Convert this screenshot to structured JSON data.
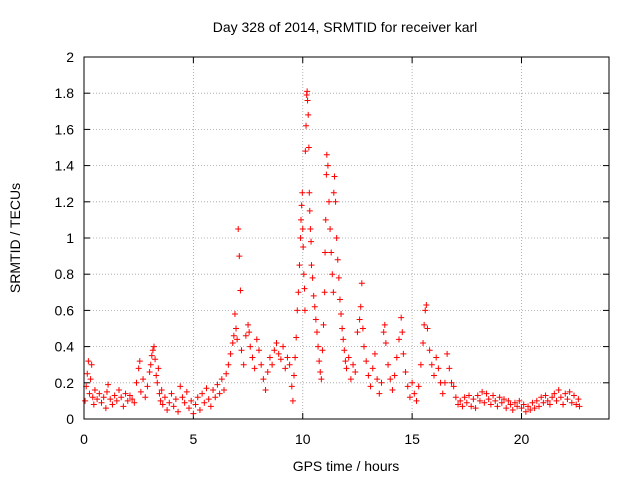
{
  "chart_data": {
    "type": "scatter",
    "title": "Day 328 of 2014, SRMTID for receiver karl",
    "xlabel": "GPS time / hours",
    "ylabel": "SRMTID / TECUs",
    "xlim": [
      0,
      24
    ],
    "ylim": [
      0,
      2
    ],
    "xticks": [
      0,
      5,
      10,
      15,
      20
    ],
    "yticks": [
      0,
      0.2,
      0.4,
      0.6,
      0.8,
      1,
      1.2,
      1.4,
      1.6,
      1.8,
      2
    ],
    "xtick_labels": [
      "0",
      "5",
      "10",
      "15",
      "20"
    ],
    "ytick_labels": [
      "0",
      "0.2",
      "0.4",
      "0.6",
      "0.8",
      "1",
      "1.2",
      "1.4",
      "1.6",
      "1.8",
      "2"
    ],
    "grid": true,
    "marker": "+",
    "color": "#ff0000",
    "series": [
      {
        "name": "SRMTID",
        "points": [
          [
            0.05,
            0.1
          ],
          [
            0.1,
            0.18
          ],
          [
            0.15,
            0.25
          ],
          [
            0.2,
            0.32
          ],
          [
            0.25,
            0.14
          ],
          [
            0.3,
            0.22
          ],
          [
            0.35,
            0.3
          ],
          [
            0.4,
            0.12
          ],
          [
            0.45,
            0.08
          ],
          [
            0.5,
            0.16
          ],
          [
            0.6,
            0.11
          ],
          [
            0.7,
            0.14
          ],
          [
            0.8,
            0.09
          ],
          [
            0.9,
            0.12
          ],
          [
            1.0,
            0.06
          ],
          [
            1.05,
            0.15
          ],
          [
            1.1,
            0.19
          ],
          [
            1.2,
            0.11
          ],
          [
            1.3,
            0.08
          ],
          [
            1.4,
            0.13
          ],
          [
            1.5,
            0.1
          ],
          [
            1.6,
            0.16
          ],
          [
            1.7,
            0.12
          ],
          [
            1.8,
            0.07
          ],
          [
            1.9,
            0.14
          ],
          [
            2.0,
            0.1
          ],
          [
            2.1,
            0.13
          ],
          [
            2.2,
            0.11
          ],
          [
            2.3,
            0.09
          ],
          [
            2.4,
            0.2
          ],
          [
            2.5,
            0.28
          ],
          [
            2.55,
            0.32
          ],
          [
            2.6,
            0.15
          ],
          [
            2.7,
            0.22
          ],
          [
            2.8,
            0.12
          ],
          [
            2.9,
            0.18
          ],
          [
            3.0,
            0.26
          ],
          [
            3.05,
            0.3
          ],
          [
            3.1,
            0.35
          ],
          [
            3.15,
            0.38
          ],
          [
            3.2,
            0.4
          ],
          [
            3.25,
            0.33
          ],
          [
            3.3,
            0.24
          ],
          [
            3.35,
            0.2
          ],
          [
            3.4,
            0.28
          ],
          [
            3.45,
            0.14
          ],
          [
            3.5,
            0.1
          ],
          [
            3.55,
            0.16
          ],
          [
            3.6,
            0.08
          ],
          [
            3.7,
            0.12
          ],
          [
            3.8,
            0.05
          ],
          [
            3.9,
            0.09
          ],
          [
            4.0,
            0.14
          ],
          [
            4.1,
            0.07
          ],
          [
            4.2,
            0.11
          ],
          [
            4.3,
            0.04
          ],
          [
            4.4,
            0.18
          ],
          [
            4.5,
            0.12
          ],
          [
            4.6,
            0.09
          ],
          [
            4.7,
            0.15
          ],
          [
            4.8,
            0.06
          ],
          [
            4.9,
            0.1
          ],
          [
            5.0,
            0.03
          ],
          [
            5.1,
            0.08
          ],
          [
            5.2,
            0.12
          ],
          [
            5.3,
            0.05
          ],
          [
            5.4,
            0.14
          ],
          [
            5.5,
            0.09
          ],
          [
            5.6,
            0.17
          ],
          [
            5.7,
            0.11
          ],
          [
            5.8,
            0.07
          ],
          [
            5.9,
            0.16
          ],
          [
            6.0,
            0.12
          ],
          [
            6.1,
            0.19
          ],
          [
            6.2,
            0.14
          ],
          [
            6.3,
            0.22
          ],
          [
            6.4,
            0.16
          ],
          [
            6.5,
            0.25
          ],
          [
            6.6,
            0.3
          ],
          [
            6.7,
            0.36
          ],
          [
            6.8,
            0.42
          ],
          [
            6.85,
            0.46
          ],
          [
            6.9,
            0.58
          ],
          [
            6.95,
            0.5
          ],
          [
            7.0,
            0.44
          ],
          [
            7.05,
            1.05
          ],
          [
            7.1,
            0.9
          ],
          [
            7.15,
            0.71
          ],
          [
            7.2,
            0.38
          ],
          [
            7.3,
            0.3
          ],
          [
            7.4,
            0.46
          ],
          [
            7.5,
            0.52
          ],
          [
            7.55,
            0.48
          ],
          [
            7.6,
            0.4
          ],
          [
            7.7,
            0.34
          ],
          [
            7.8,
            0.28
          ],
          [
            7.9,
            0.44
          ],
          [
            8.0,
            0.38
          ],
          [
            8.1,
            0.3
          ],
          [
            8.2,
            0.22
          ],
          [
            8.3,
            0.16
          ],
          [
            8.4,
            0.26
          ],
          [
            8.5,
            0.34
          ],
          [
            8.6,
            0.3
          ],
          [
            8.7,
            0.38
          ],
          [
            8.8,
            0.42
          ],
          [
            8.9,
            0.36
          ],
          [
            9.0,
            0.33
          ],
          [
            9.1,
            0.4
          ],
          [
            9.2,
            0.28
          ],
          [
            9.3,
            0.34
          ],
          [
            9.4,
            0.3
          ],
          [
            9.5,
            0.18
          ],
          [
            9.55,
            0.1
          ],
          [
            9.6,
            0.24
          ],
          [
            9.65,
            0.34
          ],
          [
            9.7,
            0.45
          ],
          [
            9.75,
            0.6
          ],
          [
            9.8,
            0.7
          ],
          [
            9.85,
            0.85
          ],
          [
            9.9,
            1.0
          ],
          [
            9.92,
            1.1
          ],
          [
            9.95,
            1.18
          ],
          [
            9.98,
            1.25
          ],
          [
            10.0,
            1.05
          ],
          [
            10.02,
            0.95
          ],
          [
            10.05,
            0.8
          ],
          [
            10.08,
            0.72
          ],
          [
            10.1,
            0.6
          ],
          [
            10.12,
            1.48
          ],
          [
            10.15,
            1.62
          ],
          [
            10.18,
            1.79
          ],
          [
            10.2,
            1.81
          ],
          [
            10.22,
            1.76
          ],
          [
            10.25,
            1.68
          ],
          [
            10.28,
            1.5
          ],
          [
            10.3,
            1.25
          ],
          [
            10.32,
            1.15
          ],
          [
            10.35,
            1.05
          ],
          [
            10.38,
            0.98
          ],
          [
            10.4,
            0.85
          ],
          [
            10.45,
            0.78
          ],
          [
            10.5,
            0.68
          ],
          [
            10.55,
            0.62
          ],
          [
            10.6,
            0.55
          ],
          [
            10.65,
            0.48
          ],
          [
            10.7,
            0.4
          ],
          [
            10.75,
            0.32
          ],
          [
            10.8,
            0.26
          ],
          [
            10.85,
            0.22
          ],
          [
            10.9,
            0.38
          ],
          [
            10.95,
            0.52
          ],
          [
            11.0,
            0.7
          ],
          [
            11.02,
            0.92
          ],
          [
            11.05,
            1.1
          ],
          [
            11.08,
            1.35
          ],
          [
            11.1,
            1.46
          ],
          [
            11.15,
            1.4
          ],
          [
            11.2,
            1.2
          ],
          [
            11.25,
            1.05
          ],
          [
            11.3,
            0.92
          ],
          [
            11.35,
            0.8
          ],
          [
            11.4,
            0.7
          ],
          [
            11.42,
            1.25
          ],
          [
            11.45,
            1.34
          ],
          [
            11.5,
            1.2
          ],
          [
            11.55,
            1.0
          ],
          [
            11.6,
            0.88
          ],
          [
            11.65,
            0.78
          ],
          [
            11.7,
            0.66
          ],
          [
            11.75,
            0.58
          ],
          [
            11.8,
            0.5
          ],
          [
            11.85,
            0.44
          ],
          [
            11.9,
            0.38
          ],
          [
            11.95,
            0.32
          ],
          [
            12.0,
            0.28
          ],
          [
            12.1,
            0.34
          ],
          [
            12.2,
            0.22
          ],
          [
            12.3,
            0.3
          ],
          [
            12.4,
            0.26
          ],
          [
            12.5,
            0.48
          ],
          [
            12.6,
            0.55
          ],
          [
            12.65,
            0.62
          ],
          [
            12.7,
            0.75
          ],
          [
            12.75,
            0.5
          ],
          [
            12.8,
            0.4
          ],
          [
            12.9,
            0.32
          ],
          [
            13.0,
            0.24
          ],
          [
            13.1,
            0.18
          ],
          [
            13.2,
            0.28
          ],
          [
            13.3,
            0.36
          ],
          [
            13.4,
            0.22
          ],
          [
            13.5,
            0.14
          ],
          [
            13.6,
            0.2
          ],
          [
            13.7,
            0.48
          ],
          [
            13.75,
            0.52
          ],
          [
            13.8,
            0.42
          ],
          [
            13.9,
            0.3
          ],
          [
            14.0,
            0.22
          ],
          [
            14.1,
            0.16
          ],
          [
            14.2,
            0.24
          ],
          [
            14.3,
            0.34
          ],
          [
            14.4,
            0.44
          ],
          [
            14.5,
            0.56
          ],
          [
            14.55,
            0.48
          ],
          [
            14.6,
            0.36
          ],
          [
            14.7,
            0.26
          ],
          [
            14.8,
            0.18
          ],
          [
            14.9,
            0.12
          ],
          [
            15.0,
            0.2
          ],
          [
            15.1,
            0.14
          ],
          [
            15.2,
            0.1
          ],
          [
            15.3,
            0.18
          ],
          [
            15.4,
            0.3
          ],
          [
            15.5,
            0.42
          ],
          [
            15.55,
            0.52
          ],
          [
            15.6,
            0.6
          ],
          [
            15.65,
            0.63
          ],
          [
            15.7,
            0.5
          ],
          [
            15.8,
            0.38
          ],
          [
            15.9,
            0.3
          ],
          [
            16.0,
            0.24
          ],
          [
            16.1,
            0.34
          ],
          [
            16.2,
            0.28
          ],
          [
            16.3,
            0.2
          ],
          [
            16.4,
            0.14
          ],
          [
            16.5,
            0.2
          ],
          [
            16.6,
            0.36
          ],
          [
            16.7,
            0.28
          ],
          [
            16.8,
            0.2
          ],
          [
            16.9,
            0.18
          ],
          [
            17.0,
            0.12
          ],
          [
            17.1,
            0.08
          ],
          [
            17.2,
            0.1
          ],
          [
            17.3,
            0.07
          ],
          [
            17.4,
            0.12
          ],
          [
            17.5,
            0.09
          ],
          [
            17.6,
            0.13
          ],
          [
            17.7,
            0.07
          ],
          [
            17.8,
            0.11
          ],
          [
            17.9,
            0.06
          ],
          [
            18.0,
            0.13
          ],
          [
            18.1,
            0.1
          ],
          [
            18.2,
            0.15
          ],
          [
            18.3,
            0.09
          ],
          [
            18.4,
            0.14
          ],
          [
            18.5,
            0.11
          ],
          [
            18.6,
            0.08
          ],
          [
            18.7,
            0.13
          ],
          [
            18.8,
            0.1
          ],
          [
            18.9,
            0.07
          ],
          [
            19.0,
            0.12
          ],
          [
            19.1,
            0.09
          ],
          [
            19.2,
            0.11
          ],
          [
            19.3,
            0.06
          ],
          [
            19.4,
            0.1
          ],
          [
            19.5,
            0.08
          ],
          [
            19.6,
            0.05
          ],
          [
            19.7,
            0.09
          ],
          [
            19.8,
            0.07
          ],
          [
            19.9,
            0.1
          ],
          [
            20.0,
            0.06
          ],
          [
            20.1,
            0.08
          ],
          [
            20.2,
            0.04
          ],
          [
            20.3,
            0.07
          ],
          [
            20.4,
            0.05
          ],
          [
            20.5,
            0.09
          ],
          [
            20.6,
            0.06
          ],
          [
            20.7,
            0.1
          ],
          [
            20.8,
            0.07
          ],
          [
            20.9,
            0.12
          ],
          [
            21.0,
            0.09
          ],
          [
            21.1,
            0.13
          ],
          [
            21.2,
            0.1
          ],
          [
            21.3,
            0.08
          ],
          [
            21.4,
            0.12
          ],
          [
            21.5,
            0.14
          ],
          [
            21.6,
            0.1
          ],
          [
            21.7,
            0.16
          ],
          [
            21.8,
            0.12
          ],
          [
            21.9,
            0.08
          ],
          [
            22.0,
            0.14
          ],
          [
            22.1,
            0.11
          ],
          [
            22.2,
            0.15
          ],
          [
            22.3,
            0.09
          ],
          [
            22.4,
            0.13
          ],
          [
            22.5,
            0.08
          ],
          [
            22.6,
            0.11
          ],
          [
            22.65,
            0.07
          ]
        ]
      }
    ]
  }
}
